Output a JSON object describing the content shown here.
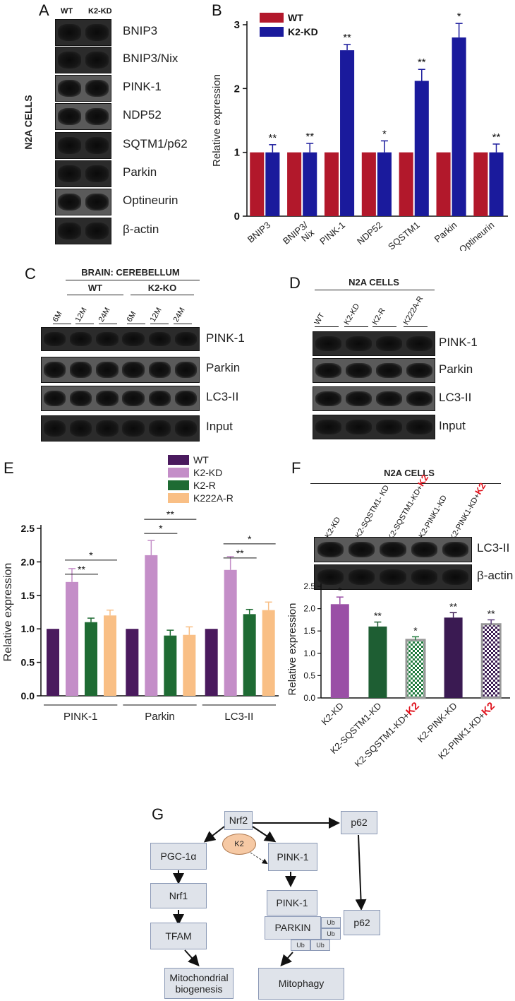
{
  "panelA": {
    "letter": "A",
    "side_label": "N2A CELLS",
    "col_labels": [
      "WT",
      "K2-KD"
    ],
    "bands": [
      "BNIP3",
      "BNIP3/Nix",
      "PINK-1",
      "NDP52",
      "SQTM1/p62",
      "Parkin",
      "Optineurin",
      "β-actin"
    ]
  },
  "panelC": {
    "letter": "C",
    "title": "BRAIN: CEREBELLUM",
    "groups": [
      "WT",
      "K2-KO"
    ],
    "lanes": [
      "6M",
      "12M",
      "24M",
      "6M",
      "12M",
      "24M"
    ],
    "bands": [
      "PINK-1",
      "Parkin",
      "LC3-II",
      "Input"
    ]
  },
  "panelD": {
    "letter": "D",
    "title": "N2A CELLS",
    "lanes": [
      "WT",
      "K2-KD",
      "K2-R",
      "K222A-R"
    ],
    "bands": [
      "PINK-1",
      "Parkin",
      "LC3-II",
      "Input"
    ]
  },
  "panelF_blot": {
    "letter": "F",
    "title": "N2A CELLS",
    "lanes": [
      {
        "base": "K2-KD",
        "red": ""
      },
      {
        "base": "K2-SQSTM1- KD",
        "red": ""
      },
      {
        "base": "K2-SQSTM1-KD+",
        "red": "K2"
      },
      {
        "base": "K2-PINK1-KD",
        "red": ""
      },
      {
        "base": "K2-PINK1-KD+",
        "red": "K2"
      }
    ],
    "bands": [
      "LC3-II",
      "β-actin"
    ]
  },
  "chart_data": [
    {
      "panel": "B",
      "type": "bar",
      "categories": [
        "BNIP3",
        "BNIP3/\nNix",
        "PINK-1",
        "NDP52",
        "SQSTM1",
        "Parkin",
        "Optineurin"
      ],
      "series": [
        {
          "name": "WT",
          "color": "#b2182b",
          "values": [
            1,
            1,
            1,
            1,
            1,
            1,
            1
          ],
          "errors": [
            0,
            0,
            0,
            0,
            0,
            0,
            0
          ]
        },
        {
          "name": "K2-KD",
          "color": "#1a1a9c",
          "values": [
            1.0,
            1.0,
            2.6,
            1.0,
            2.12,
            2.8,
            1.0
          ],
          "errors": [
            0.12,
            0.14,
            0.09,
            0.18,
            0.18,
            0.22,
            0.13
          ]
        }
      ],
      "significance": [
        "**",
        "**",
        "**",
        "*",
        "**",
        "*",
        "**"
      ],
      "ylabel": "Relative expression",
      "ylim": [
        0,
        3
      ],
      "yticks": [
        0,
        1,
        2,
        3
      ],
      "legend_position": "top-left"
    },
    {
      "panel": "E",
      "type": "bar",
      "categories": [
        "PINK-1",
        "Parkin",
        "LC3-II"
      ],
      "series": [
        {
          "name": "WT",
          "color": "#4a1a5e",
          "values": [
            1.0,
            1.0,
            1.0
          ],
          "errors": [
            0,
            0,
            0
          ]
        },
        {
          "name": "K2-KD",
          "color": "#c48ec8",
          "values": [
            1.7,
            2.1,
            1.88
          ],
          "errors": [
            0.2,
            0.22,
            0.2
          ]
        },
        {
          "name": "K2-R",
          "color": "#1e6b33",
          "values": [
            1.1,
            0.9,
            1.22
          ],
          "errors": [
            0.06,
            0.08,
            0.07
          ]
        },
        {
          "name": "K222A-R",
          "color": "#f9bf85",
          "values": [
            1.2,
            0.91,
            1.28
          ],
          "errors": [
            0.08,
            0.12,
            0.12
          ]
        }
      ],
      "comparisons": [
        {
          "group": 0,
          "from": 1,
          "to": 2,
          "label": "**"
        },
        {
          "group": 0,
          "from": 1,
          "to": 3,
          "label": "*"
        },
        {
          "group": 1,
          "from": 1,
          "to": 2,
          "label": "*"
        },
        {
          "group": 1,
          "from": 1,
          "to": 3,
          "label": "**"
        },
        {
          "group": 2,
          "from": 1,
          "to": 2,
          "label": "**"
        },
        {
          "group": 2,
          "from": 1,
          "to": 3,
          "label": "*"
        }
      ],
      "ylabel": "Relative expression",
      "ylim": [
        0,
        2.5
      ],
      "yticks": [
        "0.0",
        "0.5",
        "1.0",
        "1.5",
        "2.0",
        "2.5"
      ],
      "legend_position": "top-right"
    },
    {
      "panel": "F",
      "type": "bar",
      "categories": [
        {
          "base": "K2-KD",
          "red": ""
        },
        {
          "base": "K2-SQSTM1-KD",
          "red": ""
        },
        {
          "base": "K2-SQSTM1-KD+",
          "red": "K2"
        },
        {
          "base": "K2-PINK-KD",
          "red": ""
        },
        {
          "base": "K2-PINK1-KD+",
          "red": "K2"
        }
      ],
      "values": [
        2.1,
        1.6,
        1.3,
        1.8,
        1.65
      ],
      "errors": [
        0.16,
        0.1,
        0.07,
        0.11,
        0.1
      ],
      "colors": [
        "#9a4fa6",
        "#1e5e33",
        "#1e7a3c",
        "#3a1a52",
        "#5a3a7a"
      ],
      "patterned": [
        false,
        false,
        true,
        false,
        true
      ],
      "significance": [
        "*",
        "**",
        "*",
        "**",
        "**"
      ],
      "ylabel": "Relative expression",
      "ylim": [
        0,
        2.5
      ],
      "yticks": [
        "0.0",
        "0.5",
        "1.0",
        "1.5",
        "2.0",
        "2.5"
      ]
    }
  ],
  "panelG": {
    "letter": "G",
    "nodes": {
      "nrf2": "Nrf2",
      "p62_top": "p62",
      "k2": "K2",
      "pgc": "PGC-1α",
      "pink_top": "PINK-1",
      "nrf1": "Nrf1",
      "pink_bottom": "PINK-1",
      "p62_bottom": "p62",
      "parkin": "PARKIN",
      "ub": "Ub",
      "tfam": "TFAM",
      "mito_bio": "Mitochondrial biogenesis",
      "mitophagy": "Mitophagy"
    }
  }
}
